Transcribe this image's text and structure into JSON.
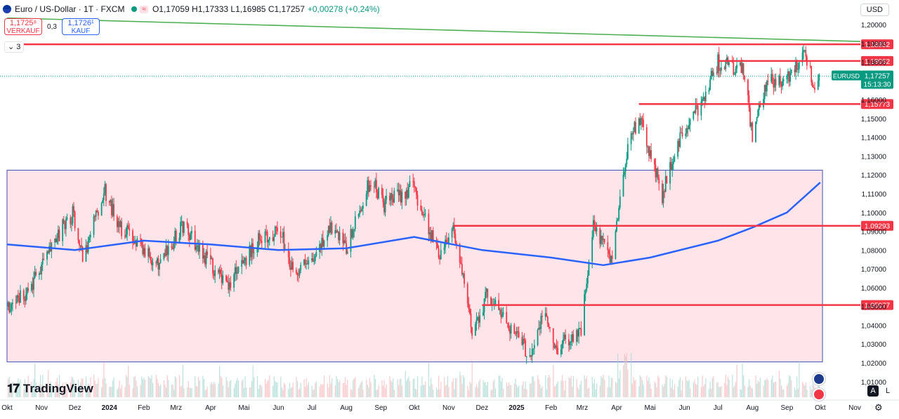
{
  "header": {
    "symbol": "Euro / US-Dollar · 1T · FXCM",
    "open": "O1,17059",
    "high": "H1,17333",
    "low": "L1,16985",
    "close": "C1,17257",
    "change": "+0,00278 (+0,24%)",
    "wave_icon": "≈"
  },
  "trade": {
    "sell_price": "1,1725⁸",
    "sell_label": "VERKAUF",
    "spread": "0,3",
    "buy_price": "1,1726¹",
    "buy_label": "KAUF"
  },
  "indicator_count": "3",
  "currency": "USD",
  "brand": "TradingView",
  "scale_buttons": {
    "auto": "A",
    "log": "L"
  },
  "price_tag": {
    "symbol": "EURUSD",
    "price": "1,17257",
    "countdown": "15:13:30"
  },
  "colors": {
    "up": "#089981",
    "down": "#f23645",
    "ma": "#2962ff",
    "trend": "#4caf50",
    "zone": "#ffe5ea",
    "level": "#f23645"
  },
  "chart_data": {
    "type": "candlestick",
    "title": "Euro / US-Dollar · 1T · FXCM",
    "ylim": [
      1.015,
      1.205
    ],
    "y_ticks": [
      "1,20000",
      "1,19000",
      "1,18000",
      "1,17000",
      "1,16000",
      "1,15000",
      "1,14000",
      "1,13000",
      "1,12000",
      "1,11000",
      "1,10000",
      "1,09000",
      "1,08000",
      "1,07000",
      "1,06000",
      "1,05000",
      "1,04000",
      "1,03000",
      "1,02000",
      "1,01000"
    ],
    "y_tick_values": [
      1.2,
      1.19,
      1.18,
      1.17,
      1.16,
      1.15,
      1.14,
      1.13,
      1.12,
      1.11,
      1.1,
      1.09,
      1.08,
      1.07,
      1.06,
      1.05,
      1.04,
      1.03,
      1.02,
      1.01
    ],
    "x_ticks": [
      "Okt",
      "Nov",
      "Dez",
      "2024",
      "Feb",
      "Mrz",
      "Apr",
      "Mai",
      "Jun",
      "Jul",
      "Aug",
      "Sep",
      "Okt",
      "Nov",
      "Dez",
      "2025",
      "Feb",
      "Mrz",
      "Apr",
      "Mai",
      "Jun",
      "Jul",
      "Aug",
      "Sep",
      "Okt",
      "Nov"
    ],
    "x_tick_dates": [
      "2023-10-01",
      "2023-11-01",
      "2023-12-01",
      "2024-01-01",
      "2024-02-01",
      "2024-03-01",
      "2024-04-01",
      "2024-05-01",
      "2024-06-01",
      "2024-07-01",
      "2024-08-01",
      "2024-09-01",
      "2024-10-01",
      "2024-11-01",
      "2024-12-01",
      "2025-01-01",
      "2025-02-01",
      "2025-03-01",
      "2025-04-01",
      "2025-05-01",
      "2025-06-01",
      "2025-07-01",
      "2025-08-01",
      "2025-09-01",
      "2025-10-01",
      "2025-11-01"
    ],
    "close_path": [
      {
        "date": "2023-10-01",
        "close": 1.05
      },
      {
        "date": "2023-10-20",
        "close": 1.058
      },
      {
        "date": "2023-11-03",
        "close": 1.073
      },
      {
        "date": "2023-11-20",
        "close": 1.092
      },
      {
        "date": "2023-11-29",
        "close": 1.099
      },
      {
        "date": "2023-12-08",
        "close": 1.076
      },
      {
        "date": "2023-12-28",
        "close": 1.112
      },
      {
        "date": "2024-01-08",
        "close": 1.094
      },
      {
        "date": "2024-01-31",
        "close": 1.082
      },
      {
        "date": "2024-02-14",
        "close": 1.071
      },
      {
        "date": "2024-03-08",
        "close": 1.094
      },
      {
        "date": "2024-03-22",
        "close": 1.08
      },
      {
        "date": "2024-04-16",
        "close": 1.062
      },
      {
        "date": "2024-05-03",
        "close": 1.076
      },
      {
        "date": "2024-05-17",
        "close": 1.088
      },
      {
        "date": "2024-06-03",
        "close": 1.089
      },
      {
        "date": "2024-06-14",
        "close": 1.07
      },
      {
        "date": "2024-07-01",
        "close": 1.072
      },
      {
        "date": "2024-07-17",
        "close": 1.093
      },
      {
        "date": "2024-08-01",
        "close": 1.08
      },
      {
        "date": "2024-08-23",
        "close": 1.118
      },
      {
        "date": "2024-09-04",
        "close": 1.104
      },
      {
        "date": "2024-09-30",
        "close": 1.114
      },
      {
        "date": "2024-10-23",
        "close": 1.078
      },
      {
        "date": "2024-11-05",
        "close": 1.093
      },
      {
        "date": "2024-11-22",
        "close": 1.037
      },
      {
        "date": "2024-12-06",
        "close": 1.057
      },
      {
        "date": "2025-01-13",
        "close": 1.024
      },
      {
        "date": "2025-01-27",
        "close": 1.048
      },
      {
        "date": "2025-02-03",
        "close": 1.027
      },
      {
        "date": "2025-02-28",
        "close": 1.038
      },
      {
        "date": "2025-03-11",
        "close": 1.092
      },
      {
        "date": "2025-03-27",
        "close": 1.075
      },
      {
        "date": "2025-04-11",
        "close": 1.136
      },
      {
        "date": "2025-04-21",
        "close": 1.151
      },
      {
        "date": "2025-05-12",
        "close": 1.109
      },
      {
        "date": "2025-05-26",
        "close": 1.137
      },
      {
        "date": "2025-06-13",
        "close": 1.155
      },
      {
        "date": "2025-07-01",
        "close": 1.18
      },
      {
        "date": "2025-07-24",
        "close": 1.175
      },
      {
        "date": "2025-08-01",
        "close": 1.141
      },
      {
        "date": "2025-08-15",
        "close": 1.17
      },
      {
        "date": "2025-09-01",
        "close": 1.17
      },
      {
        "date": "2025-09-17",
        "close": 1.187
      },
      {
        "date": "2025-09-25",
        "close": 1.167
      },
      {
        "date": "2025-09-30",
        "close": 1.17257
      }
    ],
    "moving_average": {
      "name": "MA",
      "points": [
        {
          "date": "2023-10-01",
          "value": 1.083
        },
        {
          "date": "2023-12-01",
          "value": 1.08
        },
        {
          "date": "2024-02-01",
          "value": 1.085
        },
        {
          "date": "2024-04-01",
          "value": 1.083
        },
        {
          "date": "2024-06-01",
          "value": 1.08
        },
        {
          "date": "2024-08-01",
          "value": 1.081
        },
        {
          "date": "2024-10-01",
          "value": 1.087
        },
        {
          "date": "2024-12-01",
          "value": 1.08
        },
        {
          "date": "2025-02-01",
          "value": 1.076
        },
        {
          "date": "2025-03-20",
          "value": 1.072
        },
        {
          "date": "2025-05-01",
          "value": 1.076
        },
        {
          "date": "2025-07-01",
          "value": 1.085
        },
        {
          "date": "2025-08-01",
          "value": 1.092
        },
        {
          "date": "2025-09-01",
          "value": 1.1
        },
        {
          "date": "2025-10-01",
          "value": 1.116
        }
      ]
    },
    "levels": [
      {
        "label": "1,18952",
        "value": 1.18952,
        "from": "2023-10-01"
      },
      {
        "label": "1,18062",
        "value": 1.18062,
        "from": "2025-07-01"
      },
      {
        "label": "1,15773",
        "value": 1.15773,
        "from": "2025-04-21"
      },
      {
        "label": "1,09293",
        "value": 1.09293,
        "from": "2024-11-05"
      },
      {
        "label": "1,05077",
        "value": 1.05077,
        "from": "2024-12-01"
      }
    ],
    "trendline": [
      {
        "date": "2023-10-01",
        "value": 1.2035
      },
      {
        "date": "2025-11-10",
        "value": 1.191
      }
    ],
    "zone": {
      "date_start": "2023-10-01",
      "date_end": "2025-10-03",
      "low": 1.0205,
      "high": 1.1225
    },
    "last_price_line": 1.17257
  }
}
